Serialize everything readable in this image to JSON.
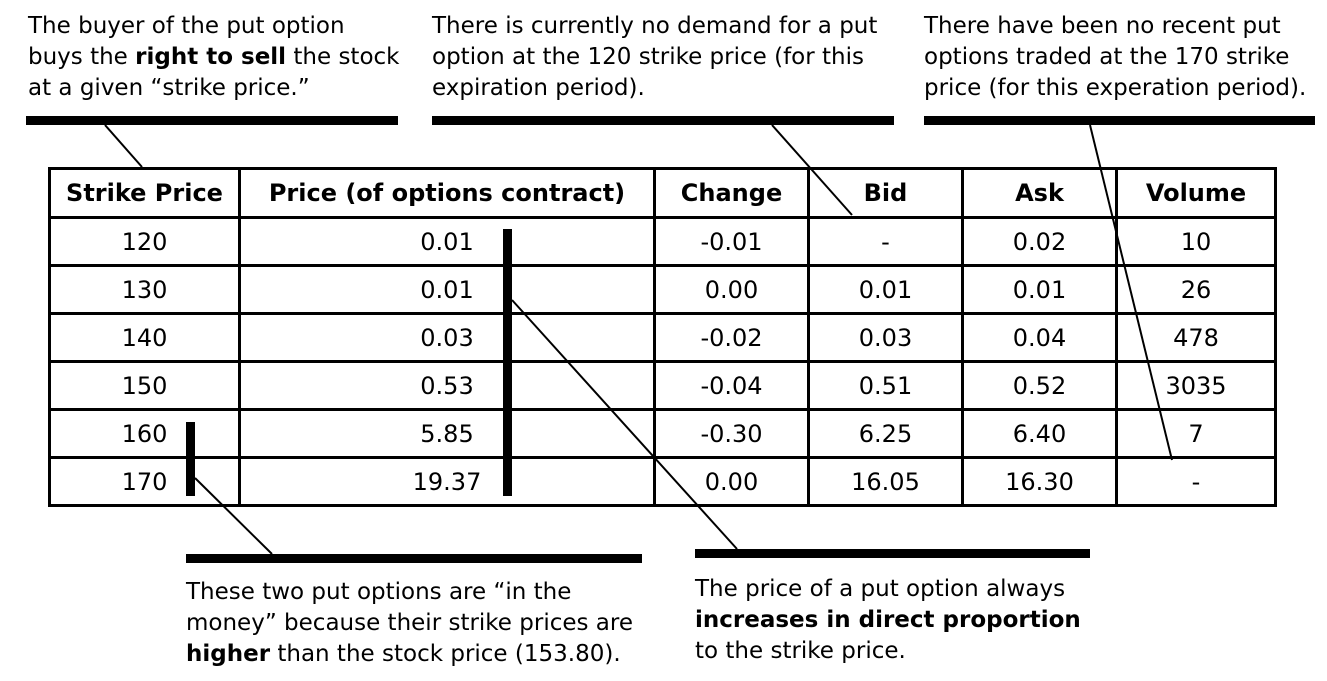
{
  "annotations": {
    "top_left": {
      "line1": "The buyer of the put option",
      "line2_pre": "buys the ",
      "line2_bold": "right to sell",
      "line2_post": " the stock",
      "line3": "at a given “strike price.”"
    },
    "top_middle": {
      "line1": "There is currently no demand for a put",
      "line2": "option at the 120 strike price (for this",
      "line3": "expiration period)."
    },
    "top_right": {
      "line1": "There have been no recent put",
      "line2": "options traded at the 170 strike",
      "line3": "price (for this experation period)."
    },
    "bottom_left": {
      "line1": "These two put options are “in the",
      "line2": "money” because their strike prices are",
      "line3_bold": "higher",
      "line3_post": " than the stock price (153.80)."
    },
    "bottom_right": {
      "line1": "The price of a put option always",
      "line2_bold": "increases in direct proportion",
      "line3": "to the strike price."
    }
  },
  "table": {
    "headers": [
      "Strike Price",
      "Price (of options contract)",
      "Change",
      "Bid",
      "Ask",
      "Volume"
    ],
    "rows": [
      [
        "120",
        "0.01",
        "-0.01",
        "-",
        "0.02",
        "10"
      ],
      [
        "130",
        "0.01",
        "0.00",
        "0.01",
        "0.01",
        "26"
      ],
      [
        "140",
        "0.03",
        "-0.02",
        "0.03",
        "0.04",
        "478"
      ],
      [
        "150",
        "0.53",
        "-0.04",
        "0.51",
        "0.52",
        "3035"
      ],
      [
        "160",
        "5.85",
        "-0.30",
        "6.25",
        "6.40",
        "7"
      ],
      [
        "170",
        "19.37",
        "0.00",
        "16.05",
        "16.30",
        "-"
      ]
    ]
  }
}
